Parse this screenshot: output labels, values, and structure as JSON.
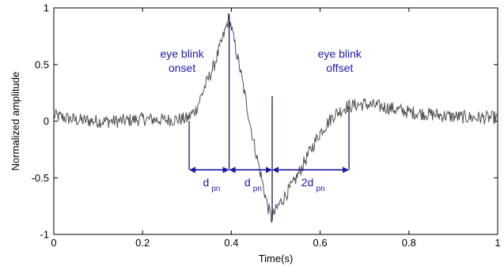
{
  "chart_data": {
    "type": "line",
    "title": "",
    "xlabel": "Time(s)",
    "ylabel": "Normalized amplitude",
    "xlim": [
      0,
      1
    ],
    "ylim": [
      -1,
      1
    ],
    "xticks": [
      0,
      0.2,
      0.4,
      0.6,
      0.8,
      1
    ],
    "xtick_labels": [
      "0",
      "0.2",
      "0.4",
      "0.6",
      "0.8",
      "1"
    ],
    "yticks": [
      -1,
      -0.5,
      0,
      0.5,
      1
    ],
    "ytick_labels": [
      "-1",
      "-0.5",
      "0",
      "0.5",
      "1"
    ],
    "grid": false,
    "series": [
      {
        "color": "#505050",
        "x": [
          0,
          0.05,
          0.1,
          0.15,
          0.2,
          0.25,
          0.3,
          0.32,
          0.34,
          0.36,
          0.38,
          0.395,
          0.42,
          0.45,
          0.48,
          0.49,
          0.51,
          0.54,
          0.57,
          0.6,
          0.63,
          0.66,
          0.7,
          0.75,
          0.8,
          0.85,
          0.9,
          0.95,
          1.0
        ],
        "y": [
          0.05,
          0.01,
          0.0,
          0.0,
          0.02,
          0.01,
          0.02,
          0.1,
          0.3,
          0.48,
          0.72,
          0.92,
          0.45,
          -0.18,
          -0.72,
          -0.86,
          -0.72,
          -0.55,
          -0.32,
          -0.1,
          0.05,
          0.13,
          0.15,
          0.12,
          0.08,
          0.06,
          0.04,
          0.03,
          0.03
        ]
      }
    ],
    "markers": [
      {
        "x": 0.305,
        "y_top": 0.0,
        "y_bottom": -0.43
      },
      {
        "x": 0.395,
        "y_top": 0.94,
        "y_bottom": -0.43
      },
      {
        "x": 0.492,
        "y_top": 0.22,
        "y_bottom": -0.88
      },
      {
        "x": 0.665,
        "y_top": 0.13,
        "y_bottom": -0.43
      }
    ],
    "intervals": [
      {
        "from": 0.305,
        "to": 0.395,
        "y": -0.43,
        "label": "d",
        "sub": "pn"
      },
      {
        "from": 0.395,
        "to": 0.492,
        "y": -0.43,
        "label": "d",
        "sub": "pn"
      },
      {
        "from": 0.492,
        "to": 0.665,
        "y": -0.43,
        "label": "2d",
        "sub": "pn"
      }
    ],
    "annotations": [
      {
        "lines": [
          "eye blink",
          "onset"
        ],
        "x": 0.305,
        "y": 0.56
      },
      {
        "lines": [
          "eye blink",
          "offset"
        ],
        "x": 0.66,
        "y": 0.56
      }
    ]
  }
}
